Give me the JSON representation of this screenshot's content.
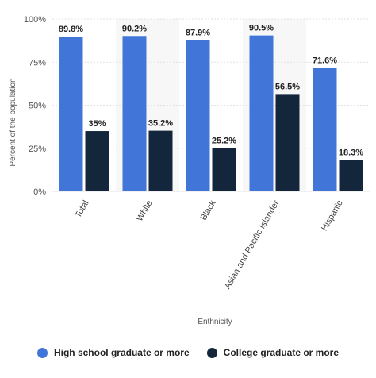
{
  "chart_data": {
    "type": "bar",
    "categories": [
      "Total",
      "White",
      "Black",
      "Asian and Pacific Islander",
      "Hispanic"
    ],
    "series": [
      {
        "name": "High school graduate or more",
        "values": [
          89.8,
          90.2,
          87.9,
          90.5,
          71.6
        ],
        "labels": [
          "89.8%",
          "90.2%",
          "87.9%",
          "90.5%",
          "71.6%"
        ],
        "color": "#4176d8"
      },
      {
        "name": "College graduate or more",
        "values": [
          35,
          35.2,
          25.2,
          56.5,
          18.3
        ],
        "labels": [
          "35%",
          "35.2%",
          "25.2%",
          "56.5%",
          "18.3%"
        ],
        "color": "#13263b"
      }
    ],
    "yticks": [
      {
        "value": 0,
        "label": "0%"
      },
      {
        "value": 25,
        "label": "25%"
      },
      {
        "value": 50,
        "label": "50%"
      },
      {
        "value": 75,
        "label": "75%"
      },
      {
        "value": 100,
        "label": "100%"
      }
    ],
    "xlabel": "Enthnicity",
    "ylabel": "Percent of the population",
    "ylim": [
      0,
      100
    ],
    "grid": true,
    "alternating_bands": true,
    "legend": "bottom-center"
  }
}
